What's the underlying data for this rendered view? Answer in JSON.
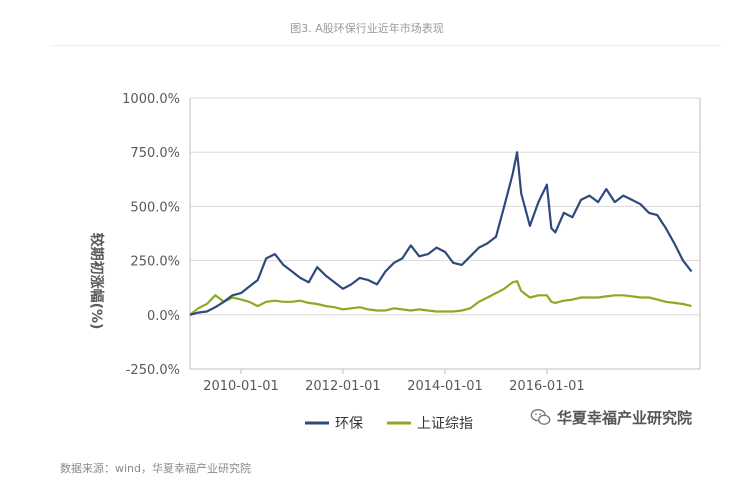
{
  "figure_title": "图3. A股环保行业近年市场表现",
  "source_note": "数据来源：wind，华夏幸福产业研究院",
  "watermark": {
    "text": "华夏幸福产业研究院",
    "icon": "wechat-icon"
  },
  "chart_data": {
    "type": "line",
    "title": "图3. A股环保行业近年市场表现",
    "xlabel": "",
    "ylabel": "较期初涨幅(%)",
    "x_tick_labels": [
      "2010-01-01",
      "2012-01-01",
      "2014-01-01",
      "2016-01-01"
    ],
    "x_ticks": [
      "2010-01-01",
      "2012-01-01",
      "2014-01-01",
      "2016-01-01"
    ],
    "xlim": [
      "2009-01-01",
      "2019-01-01"
    ],
    "y_tick_labels": [
      "1000.0%",
      "750.0%",
      "500.0%",
      "250.0%",
      "0.0%",
      "-250.0%"
    ],
    "y_ticks": [
      1000,
      750,
      500,
      250,
      0,
      -250
    ],
    "ylim": [
      -250,
      1000
    ],
    "grid": "horizontal",
    "legend": "bottom-center",
    "colors": {
      "环保": "#2e4a7d",
      "上证综指": "#8caa24"
    },
    "x": [
      "2009-01-01",
      "2009-03-01",
      "2009-05-01",
      "2009-07-01",
      "2009-09-01",
      "2009-11-01",
      "2010-01-01",
      "2010-03-01",
      "2010-05-01",
      "2010-07-01",
      "2010-09-01",
      "2010-11-01",
      "2011-01-01",
      "2011-03-01",
      "2011-05-01",
      "2011-07-01",
      "2011-09-01",
      "2011-11-01",
      "2012-01-01",
      "2012-03-01",
      "2012-05-01",
      "2012-07-01",
      "2012-09-01",
      "2012-11-01",
      "2013-01-01",
      "2013-03-01",
      "2013-05-01",
      "2013-07-01",
      "2013-09-01",
      "2013-11-01",
      "2014-01-01",
      "2014-03-01",
      "2014-05-01",
      "2014-07-01",
      "2014-09-01",
      "2014-11-01",
      "2015-01-01",
      "2015-03-01",
      "2015-05-01",
      "2015-06-01",
      "2015-07-01",
      "2015-09-01",
      "2015-11-01",
      "2016-01-01",
      "2016-02-01",
      "2016-03-01",
      "2016-05-01",
      "2016-07-01",
      "2016-09-01",
      "2016-11-01",
      "2017-01-01",
      "2017-03-01",
      "2017-05-01",
      "2017-07-01",
      "2017-09-01",
      "2017-11-01",
      "2018-01-01",
      "2018-03-01",
      "2018-05-01",
      "2018-07-01",
      "2018-09-01",
      "2018-11-01"
    ],
    "series": [
      {
        "name": "环保",
        "values": [
          0,
          10,
          15,
          35,
          60,
          90,
          100,
          130,
          160,
          260,
          280,
          230,
          200,
          170,
          150,
          220,
          180,
          150,
          120,
          140,
          170,
          160,
          140,
          200,
          240,
          260,
          320,
          270,
          280,
          310,
          290,
          240,
          230,
          270,
          310,
          330,
          360,
          500,
          650,
          750,
          560,
          410,
          520,
          600,
          400,
          380,
          470,
          450,
          530,
          550,
          520,
          580,
          520,
          550,
          530,
          510,
          470,
          460,
          400,
          330,
          250,
          200
        ]
      },
      {
        "name": "上证综指",
        "values": [
          0,
          30,
          50,
          90,
          60,
          80,
          70,
          60,
          40,
          60,
          65,
          60,
          60,
          65,
          55,
          50,
          40,
          35,
          25,
          30,
          35,
          25,
          20,
          20,
          30,
          25,
          20,
          25,
          20,
          15,
          15,
          15,
          20,
          30,
          60,
          80,
          100,
          120,
          150,
          155,
          110,
          80,
          90,
          90,
          60,
          55,
          65,
          70,
          80,
          80,
          80,
          85,
          90,
          90,
          85,
          80,
          80,
          70,
          60,
          55,
          50,
          40
        ]
      }
    ]
  }
}
